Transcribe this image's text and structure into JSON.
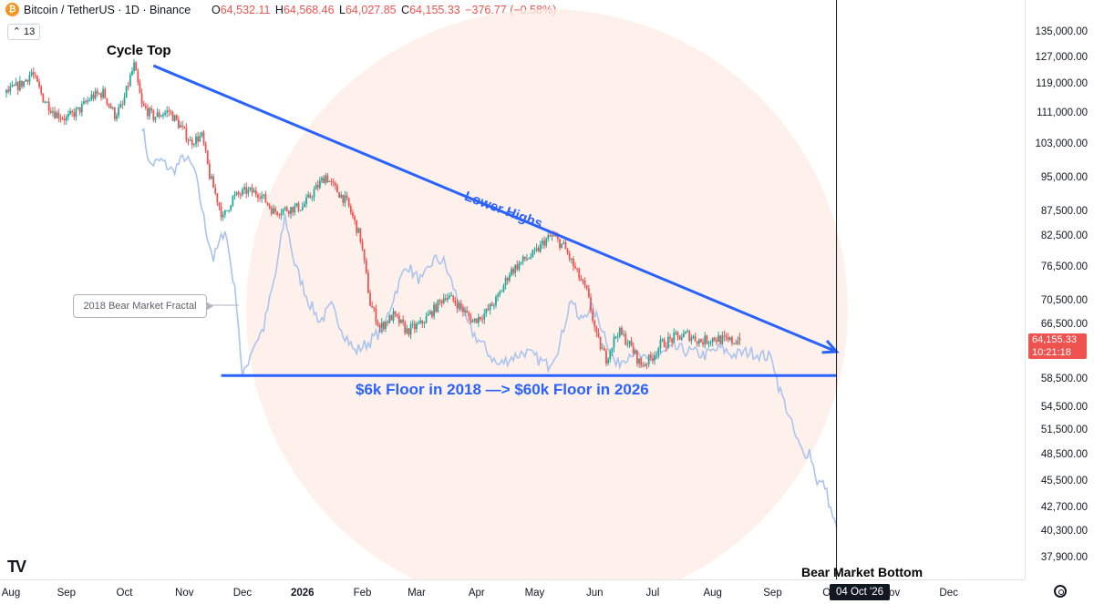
{
  "header": {
    "symbol": "Bitcoin / TetherUS · 1D · Binance",
    "open_label": "O",
    "open": "64,532.11",
    "high_label": "H",
    "high": "64,568.46",
    "low_label": "L",
    "low": "64,027.85",
    "close_label": "C",
    "close": "64,155.33",
    "change": "−376.77 (−0.58%)",
    "indicator_count": "13"
  },
  "icons": {
    "btc": "bitcoin-icon",
    "logo": "tradingview-logo-icon",
    "settings": "gear-icon"
  },
  "logo_text": "TV",
  "colors": {
    "up": "#26a69a",
    "down": "#ef5350",
    "fractal": "#aac4ee",
    "trend": "#2962ff",
    "watermark": "#fde9e3"
  },
  "current_price": {
    "value": "64,155.33",
    "timer": "10:21:18"
  },
  "price_axis": [
    "135,000.00",
    "127,000.00",
    "119,000.00",
    "111,000.00",
    "103,000.00",
    "95,000.00",
    "87,500.00",
    "82,500.00",
    "76,500.00",
    "70,500.00",
    "66,500.00",
    "58,500.00",
    "54,500.00",
    "51,500.00",
    "48,500.00",
    "45,500.00",
    "42,700.00",
    "40,300.00",
    "37,900.00"
  ],
  "time_axis": [
    "Aug",
    "Sep",
    "Oct",
    "Nov",
    "Dec",
    "2026",
    "Feb",
    "Mar",
    "Apr",
    "May",
    "Jun",
    "Jul",
    "Aug",
    "Sep",
    "Oct",
    "Nov",
    "Dec"
  ],
  "date_badge": "04 Oct '26",
  "annotations": {
    "cycle_top": "Cycle Top",
    "lower_highs": "Lower Highs",
    "floor": "$6k Floor in 2018 —> $60k Floor in 2026",
    "fractal_label": "2018 Bear Market Fractal",
    "bear_bottom": "Bear Market Bottom"
  },
  "chart_data": {
    "type": "candlestick",
    "title": "Bitcoin / TetherUS · 1D · Binance",
    "ylim": [
      37900,
      135000
    ],
    "ohlc_last": {
      "open": 64532.11,
      "high": 64568.46,
      "low": 64027.85,
      "close": 64155.33
    },
    "price_path": [
      [
        "2025-08-01",
        116500
      ],
      [
        "2025-08-10",
        119500
      ],
      [
        "2025-08-14",
        122500
      ],
      [
        "2025-08-20",
        115000
      ],
      [
        "2025-08-26",
        111000
      ],
      [
        "2025-09-01",
        109500
      ],
      [
        "2025-09-08",
        112000
      ],
      [
        "2025-09-14",
        115500
      ],
      [
        "2025-09-20",
        116500
      ],
      [
        "2025-09-26",
        110500
      ],
      [
        "2025-09-30",
        113000
      ],
      [
        "2025-10-04",
        121000
      ],
      [
        "2025-10-06",
        124500
      ],
      [
        "2025-10-10",
        113000
      ],
      [
        "2025-10-16",
        110000
      ],
      [
        "2025-10-24",
        111500
      ],
      [
        "2025-10-30",
        107500
      ],
      [
        "2025-11-04",
        103500
      ],
      [
        "2025-11-10",
        105000
      ],
      [
        "2025-11-14",
        95500
      ],
      [
        "2025-11-21",
        86000
      ],
      [
        "2025-11-26",
        90500
      ],
      [
        "2025-12-03",
        92000
      ],
      [
        "2025-12-10",
        91500
      ],
      [
        "2025-12-17",
        87500
      ],
      [
        "2025-12-24",
        88000
      ],
      [
        "2026-01-01",
        88500
      ],
      [
        "2026-01-07",
        92000
      ],
      [
        "2026-01-13",
        95500
      ],
      [
        "2026-01-16",
        93500
      ],
      [
        "2026-01-24",
        89500
      ],
      [
        "2026-01-31",
        82000
      ],
      [
        "2026-02-05",
        70000
      ],
      [
        "2026-02-10",
        66000
      ],
      [
        "2026-02-17",
        68000
      ],
      [
        "2026-02-24",
        65500
      ],
      [
        "2026-03-03",
        66500
      ],
      [
        "2026-03-10",
        69000
      ],
      [
        "2026-03-16",
        71500
      ],
      [
        "2026-03-22",
        70000
      ],
      [
        "2026-03-30",
        67000
      ],
      [
        "2026-04-06",
        68500
      ],
      [
        "2026-04-12",
        71000
      ],
      [
        "2026-04-18",
        75500
      ],
      [
        "2026-04-26",
        78000
      ],
      [
        "2026-05-01",
        79000
      ],
      [
        "2026-05-06",
        81500
      ],
      [
        "2026-05-10",
        82500
      ],
      [
        "2026-05-16",
        80500
      ],
      [
        "2026-05-22",
        76000
      ],
      [
        "2026-05-28",
        72000
      ],
      [
        "2026-06-02",
        64500
      ],
      [
        "2026-06-07",
        61500
      ],
      [
        "2026-06-13",
        65500
      ],
      [
        "2026-06-18",
        64000
      ],
      [
        "2026-06-25",
        60500
      ],
      [
        "2026-06-30",
        61500
      ],
      [
        "2026-07-05",
        63500
      ],
      [
        "2026-07-12",
        64500
      ],
      [
        "2026-07-19",
        65000
      ],
      [
        "2026-07-26",
        64000
      ],
      [
        "2026-08-02",
        64500
      ],
      [
        "2026-08-09",
        64000
      ],
      [
        "2026-08-15",
        64155
      ]
    ],
    "fractal_path": [
      [
        "2025-10-10",
        108000
      ],
      [
        "2025-10-14",
        98000
      ],
      [
        "2025-10-20",
        99000
      ],
      [
        "2025-10-26",
        96500
      ],
      [
        "2025-11-01",
        100000
      ],
      [
        "2025-11-06",
        97000
      ],
      [
        "2025-11-12",
        84000
      ],
      [
        "2025-11-16",
        78000
      ],
      [
        "2025-11-22",
        84000
      ],
      [
        "2025-11-28",
        70000
      ],
      [
        "2025-12-01",
        58500
      ],
      [
        "2025-12-06",
        63000
      ],
      [
        "2025-12-12",
        66000
      ],
      [
        "2025-12-18",
        75000
      ],
      [
        "2025-12-23",
        86500
      ],
      [
        "2025-12-28",
        77000
      ],
      [
        "2026-01-04",
        70500
      ],
      [
        "2026-01-10",
        67000
      ],
      [
        "2026-01-16",
        69500
      ],
      [
        "2026-01-22",
        65500
      ],
      [
        "2026-01-28",
        62500
      ],
      [
        "2026-02-05",
        64000
      ],
      [
        "2026-02-12",
        66000
      ],
      [
        "2026-02-18",
        72000
      ],
      [
        "2026-02-24",
        77000
      ],
      [
        "2026-02-28",
        75000
      ],
      [
        "2026-03-04",
        74000
      ],
      [
        "2026-03-10",
        78000
      ],
      [
        "2026-03-15",
        77500
      ],
      [
        "2026-03-22",
        71000
      ],
      [
        "2026-03-28",
        66000
      ],
      [
        "2026-04-04",
        63500
      ],
      [
        "2026-04-12",
        60500
      ],
      [
        "2026-04-18",
        61500
      ],
      [
        "2026-04-26",
        62500
      ],
      [
        "2026-05-02",
        61500
      ],
      [
        "2026-05-08",
        60500
      ],
      [
        "2026-05-14",
        63500
      ],
      [
        "2026-05-20",
        71000
      ],
      [
        "2026-05-24",
        67000
      ],
      [
        "2026-05-30",
        69500
      ],
      [
        "2026-06-05",
        66000
      ],
      [
        "2026-06-12",
        60500
      ],
      [
        "2026-06-20",
        62500
      ],
      [
        "2026-06-28",
        61000
      ],
      [
        "2026-07-05",
        62000
      ],
      [
        "2026-07-12",
        63000
      ],
      [
        "2026-07-20",
        62500
      ],
      [
        "2026-07-28",
        62000
      ],
      [
        "2026-08-05",
        63000
      ],
      [
        "2026-08-12",
        62000
      ],
      [
        "2026-08-20",
        62500
      ],
      [
        "2026-08-26",
        62000
      ],
      [
        "2026-09-01",
        61500
      ],
      [
        "2026-09-04",
        57500
      ],
      [
        "2026-09-08",
        54500
      ],
      [
        "2026-09-13",
        50500
      ],
      [
        "2026-09-17",
        48500
      ],
      [
        "2026-09-20",
        49000
      ],
      [
        "2026-09-24",
        45500
      ],
      [
        "2026-09-28",
        45000
      ],
      [
        "2026-10-01",
        42500
      ],
      [
        "2026-10-04",
        40500
      ]
    ],
    "lower_highs_line": {
      "start": [
        "2025-10-16",
        124500
      ],
      "end": [
        "2026-10-04",
        62500
      ]
    },
    "floor_line": {
      "start": [
        "2025-11-20",
        59000
      ],
      "end": [
        "2026-10-04",
        59000
      ]
    },
    "cursor_date": "2026-10-04"
  }
}
